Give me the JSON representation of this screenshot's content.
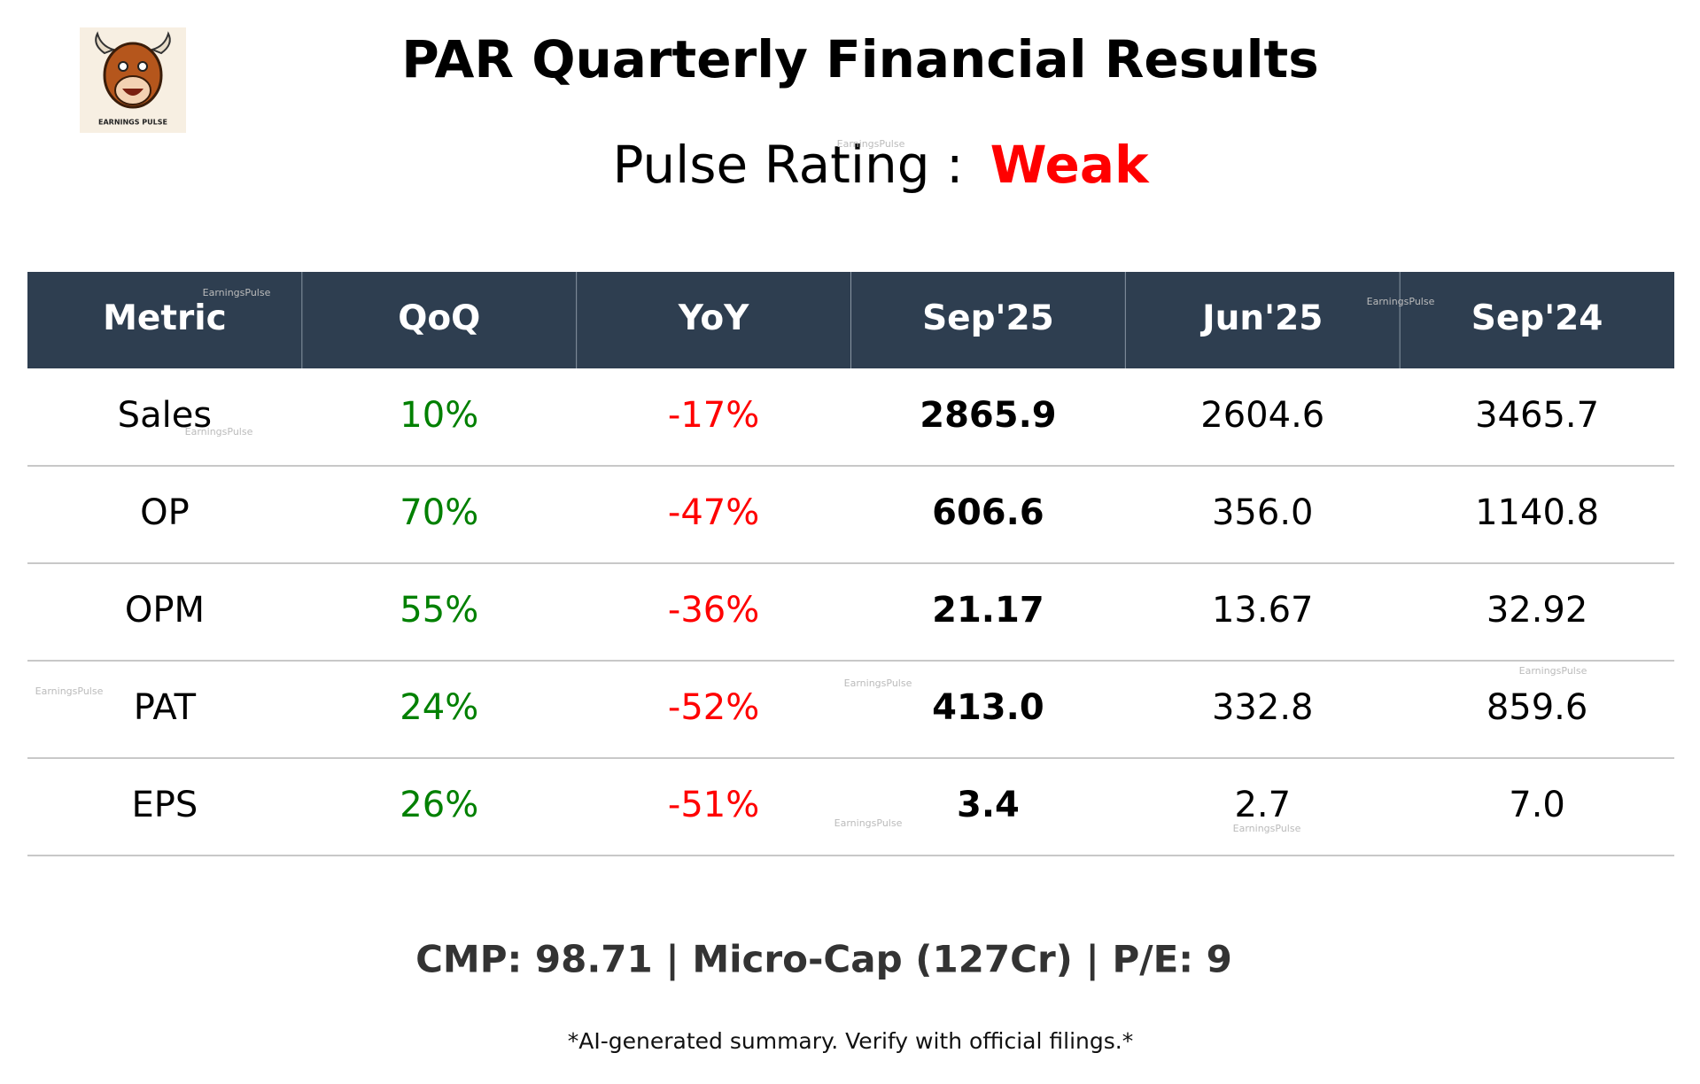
{
  "logo": {
    "label": "EARNINGS PULSE"
  },
  "header": {
    "title": "PAR Quarterly Financial Results",
    "rating_label": "Pulse Rating :",
    "rating": "Weak"
  },
  "watermark": "EarningsPulse",
  "table": {
    "columns": [
      "Metric",
      "QoQ",
      "YoY",
      "Sep'25",
      "Jun'25",
      "Sep'24"
    ],
    "rows": [
      [
        "Sales",
        "10%",
        "-17%",
        "2865.9",
        "2604.6",
        "3465.7"
      ],
      [
        "OP",
        "70%",
        "-47%",
        "606.6",
        "356.0",
        "1140.8"
      ],
      [
        "OPM",
        "55%",
        "-36%",
        "21.17",
        "13.67",
        "32.92"
      ],
      [
        "PAT",
        "24%",
        "-52%",
        "413.0",
        "332.8",
        "859.6"
      ],
      [
        "EPS",
        "26%",
        "-51%",
        "3.4",
        "2.7",
        "7.0"
      ]
    ]
  },
  "footer": {
    "summary": "CMP: 98.71 | Micro-Cap (127Cr) | P/E: 9",
    "disclaimer": "*AI-generated summary. Verify with official filings.*"
  }
}
